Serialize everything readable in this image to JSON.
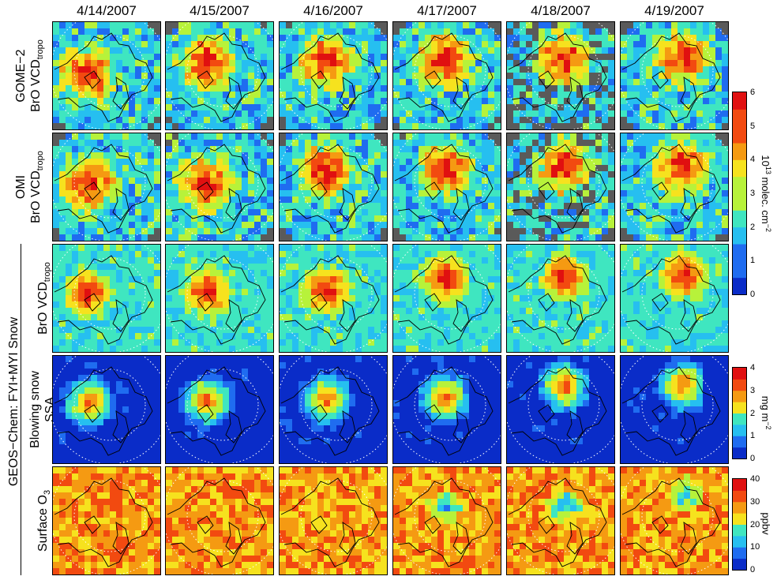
{
  "dates": [
    "4/14/2007",
    "4/15/2007",
    "4/16/2007",
    "4/17/2007",
    "4/18/2007",
    "4/19/2007"
  ],
  "rows": [
    {
      "label_line1": "GOME−2",
      "label_line2": "BrO VCD",
      "label_sub": "tropo",
      "style": "sat",
      "peak": 6
    },
    {
      "label_line1": "OMI",
      "label_line2": "BrO VCD",
      "label_sub": "tropo",
      "style": "sat",
      "peak": 6
    },
    {
      "label_line1": "",
      "label_line2": "BrO VCD",
      "label_sub": "tropo",
      "style": "model",
      "peak": 6
    },
    {
      "label_line1": "Blowing snow",
      "label_line2": "SSA",
      "label_sub": "",
      "style": "ssa",
      "peak": 4
    },
    {
      "label_line1": "Surface O",
      "label_line2": "",
      "label_sub": "3",
      "style": "o3",
      "peak": 40
    }
  ],
  "group_label": "GEOS−Chem: FYI+MYI Snow",
  "colorbars": [
    {
      "ticks": [
        "0",
        "1",
        "2",
        "3",
        "4",
        "5",
        "6"
      ],
      "label_main": " molec. cm",
      "label_sup_pre": "10",
      "label_exp": "13",
      "label_exp2": "−2"
    },
    {
      "ticks": [
        "0",
        "1",
        "2",
        "3",
        "4"
      ],
      "label_main": "mg m",
      "label_exp2": "−2"
    },
    {
      "ticks": [
        "0",
        "10",
        "20",
        "30",
        "40"
      ],
      "label_main": "ppbv"
    }
  ],
  "colors": {
    "jet": [
      "#0a2cc8",
      "#1f6cf0",
      "#26bff0",
      "#3fe6c0",
      "#b7f23a",
      "#f6e21e",
      "#f59a12",
      "#f24a10",
      "#e01010"
    ],
    "missing": "#5a5a5a",
    "coast": "#000000",
    "latitude_circle": "#ffffff"
  }
}
